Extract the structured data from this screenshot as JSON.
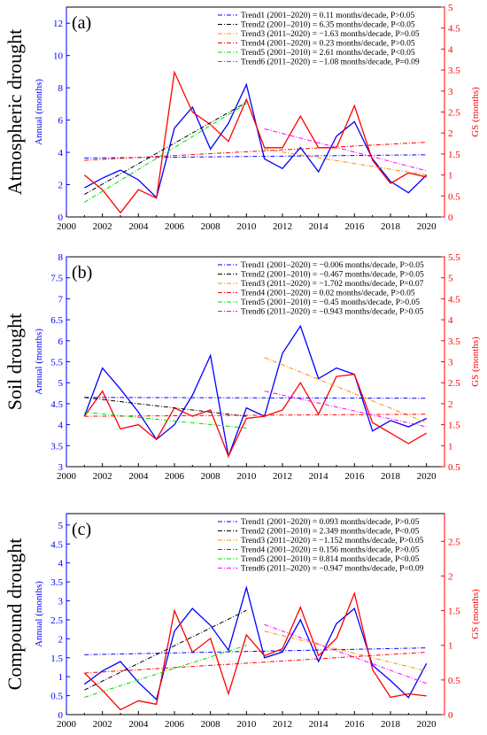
{
  "chart_data": [
    {
      "type": "line",
      "panel_label": "(a)",
      "row_title": "Atmospheric drought",
      "ylabel_left": "Annual (months)",
      "ylabel_right": "GS (months)",
      "xlim": [
        2000,
        2021
      ],
      "x_ticks": [
        2000,
        2002,
        2004,
        2006,
        2008,
        2010,
        2012,
        2014,
        2016,
        2018,
        2020
      ],
      "ylim_left": [
        0,
        13
      ],
      "y_ticks_left": [
        0,
        2,
        4,
        6,
        8,
        10,
        12
      ],
      "ylim_right": [
        0,
        5
      ],
      "y_ticks_right": [
        0,
        0.5,
        1,
        1.5,
        2,
        2.5,
        3,
        3.5,
        4,
        4.5,
        5
      ],
      "x": [
        2001,
        2002,
        2003,
        2004,
        2005,
        2006,
        2007,
        2008,
        2009,
        2010,
        2011,
        2012,
        2013,
        2014,
        2015,
        2016,
        2017,
        2018,
        2019,
        2020
      ],
      "series": [
        {
          "key": "annual",
          "axis": "left",
          "color": "#0000ff",
          "values": [
            1.8,
            2.4,
            2.9,
            2.3,
            1.2,
            5.5,
            6.8,
            4.2,
            5.8,
            8.2,
            3.6,
            3.0,
            4.3,
            2.8,
            5.0,
            5.9,
            3.6,
            2.2,
            1.5,
            2.6
          ]
        },
        {
          "key": "gs",
          "axis": "right",
          "color": "#ff0000",
          "values": [
            1.0,
            0.65,
            0.1,
            0.65,
            0.45,
            3.45,
            2.5,
            2.2,
            1.8,
            2.8,
            1.65,
            1.65,
            2.4,
            1.65,
            1.65,
            2.65,
            1.35,
            0.8,
            1.05,
            0.95
          ]
        }
      ],
      "trends": [
        {
          "name": "Trend1",
          "label": "Trend1 (2001–2020) = 0.11 months/decade, P>0.05",
          "axis": "left",
          "color": "#0000ff",
          "dash": "dashdot",
          "x0": 2001,
          "x1": 2020,
          "y0": 3.65,
          "y1": 3.85
        },
        {
          "name": "Trend2",
          "label": "Trend2 (2001–2010) = 6.35 months/decade, P<0.05",
          "axis": "left",
          "color": "#000000",
          "dash": "dashdot",
          "x0": 2001,
          "x1": 2010,
          "y0": 1.4,
          "y1": 7.1
        },
        {
          "name": "Trend3",
          "label": "Trend3 (2011–2020) = −1.63 months/decade, P>0.05",
          "axis": "left",
          "color": "#ff8c00",
          "dash": "dashdot",
          "x0": 2011,
          "x1": 2020,
          "y0": 4.2,
          "y1": 2.6
        },
        {
          "name": "Trend4",
          "label": "Trend4 (2001–2020) = 0.23 months/decade, P>0.05",
          "axis": "right",
          "color": "#ff0000",
          "dash": "dashdot",
          "x0": 2001,
          "x1": 2020,
          "y0": 1.35,
          "y1": 1.78
        },
        {
          "name": "Trend5",
          "label": "Trend5 (2001–2010) = 2.61 months/decade, P<0.05",
          "axis": "right",
          "color": "#00dd00",
          "dash": "dashdot",
          "x0": 2001,
          "x1": 2010,
          "y0": 0.35,
          "y1": 2.7
        },
        {
          "name": "Trend6",
          "label": "Trend6 (2011–2020) = −1.08 months/decade, P=0.09",
          "axis": "right",
          "color": "#ff00ff",
          "dash": "dashdot",
          "x0": 2011,
          "x1": 2020,
          "y0": 2.1,
          "y1": 1.1
        }
      ]
    },
    {
      "type": "line",
      "panel_label": "(b)",
      "row_title": "Soil drought",
      "ylabel_left": "Annual (months)",
      "ylabel_right": "GS (months)",
      "xlim": [
        2000,
        2021
      ],
      "x_ticks": [
        2000,
        2002,
        2004,
        2006,
        2008,
        2010,
        2012,
        2014,
        2016,
        2018,
        2020
      ],
      "ylim_left": [
        3,
        8
      ],
      "y_ticks_left": [
        3,
        3.5,
        4,
        4.5,
        5,
        5.5,
        6,
        6.5,
        7,
        7.5,
        8
      ],
      "ylim_right": [
        0.5,
        5.5
      ],
      "y_ticks_right": [
        0.5,
        1,
        1.5,
        2,
        2.5,
        3,
        3.5,
        4,
        4.5,
        5,
        5.5
      ],
      "x": [
        2001,
        2002,
        2003,
        2004,
        2005,
        2006,
        2007,
        2008,
        2009,
        2010,
        2011,
        2012,
        2013,
        2014,
        2015,
        2016,
        2017,
        2018,
        2019,
        2020
      ],
      "series": [
        {
          "key": "annual",
          "axis": "left",
          "color": "#0000ff",
          "values": [
            4.2,
            5.35,
            4.85,
            4.3,
            3.65,
            4.0,
            4.7,
            5.65,
            3.25,
            4.4,
            4.2,
            5.7,
            6.35,
            5.1,
            5.35,
            5.2,
            3.85,
            4.1,
            3.95,
            4.15
          ]
        },
        {
          "key": "gs",
          "axis": "right",
          "color": "#ff0000",
          "values": [
            1.7,
            2.3,
            1.4,
            1.5,
            1.15,
            1.9,
            1.7,
            1.85,
            0.75,
            1.65,
            1.7,
            1.85,
            2.5,
            1.75,
            2.65,
            2.7,
            1.55,
            1.3,
            1.05,
            1.3
          ]
        }
      ],
      "trends": [
        {
          "name": "Trend1",
          "label": "Trend1 (2001–2020) = −0.006 months/decade, P>0.05",
          "axis": "left",
          "color": "#0000ff",
          "dash": "dashdot",
          "x0": 2001,
          "x1": 2020,
          "y0": 4.65,
          "y1": 4.63
        },
        {
          "name": "Trend2",
          "label": "Trend2 (2001–2010) = −0.467 months/decade, P>0.05",
          "axis": "left",
          "color": "#000000",
          "dash": "dashdot",
          "x0": 2001,
          "x1": 2010,
          "y0": 4.65,
          "y1": 4.2
        },
        {
          "name": "Trend3",
          "label": "Trend3 (2011–2020) = −1.702 months/decade, P=0.07",
          "axis": "left",
          "color": "#ff8c00",
          "dash": "dashdot",
          "x0": 2011,
          "x1": 2020,
          "y0": 5.6,
          "y1": 4.05
        },
        {
          "name": "Trend4",
          "label": "Trend4 (2001–2020) = 0.02 months/decade, P>0.05",
          "axis": "right",
          "color": "#ff0000",
          "dash": "dashdot",
          "x0": 2001,
          "x1": 2020,
          "y0": 1.7,
          "y1": 1.75
        },
        {
          "name": "Trend5",
          "label": "Trend5 (2001–2010) = −0.45 months/decade, P>0.05",
          "axis": "left",
          "color": "#00dd00",
          "dash": "dashdot",
          "x0": 2001,
          "x1": 2010,
          "y0": 4.3,
          "y1": 3.92
        },
        {
          "name": "Trend6",
          "label": "Trend6 (2011–2020) = −0.943 months/decade, P>0.05",
          "axis": "right",
          "color": "#ff00ff",
          "dash": "dashdot",
          "x0": 2011,
          "x1": 2020,
          "y0": 2.3,
          "y1": 1.45
        }
      ]
    },
    {
      "type": "line",
      "panel_label": "(c)",
      "row_title": "Compound drought",
      "ylabel_left": "Annual (months)",
      "ylabel_right": "GS (months)",
      "xlim": [
        2000,
        2021
      ],
      "x_ticks": [
        2000,
        2002,
        2004,
        2006,
        2008,
        2010,
        2012,
        2014,
        2016,
        2018,
        2020
      ],
      "ylim_left": [
        0,
        5.3
      ],
      "y_ticks_left": [
        0,
        0.5,
        1,
        1.5,
        2,
        2.5,
        3,
        3.5,
        4,
        4.5,
        5
      ],
      "ylim_right": [
        0,
        2.9
      ],
      "y_ticks_right": [
        0,
        0.5,
        1,
        1.5,
        2,
        2.5
      ],
      "x": [
        2001,
        2002,
        2003,
        2004,
        2005,
        2006,
        2007,
        2008,
        2009,
        2010,
        2011,
        2012,
        2013,
        2014,
        2015,
        2016,
        2017,
        2018,
        2019,
        2020
      ],
      "series": [
        {
          "key": "annual",
          "axis": "left",
          "color": "#0000ff",
          "values": [
            0.8,
            1.15,
            1.4,
            0.85,
            0.4,
            2.2,
            2.8,
            2.35,
            1.7,
            3.35,
            1.5,
            1.65,
            2.5,
            1.4,
            2.4,
            2.8,
            1.3,
            0.9,
            0.45,
            1.35
          ]
        },
        {
          "key": "gs",
          "axis": "right",
          "color": "#ff0000",
          "values": [
            0.6,
            0.35,
            0.07,
            0.2,
            0.15,
            1.5,
            0.9,
            1.1,
            0.3,
            1.15,
            0.85,
            0.95,
            1.55,
            0.85,
            1.1,
            1.75,
            0.65,
            0.25,
            0.3,
            0.27
          ]
        }
      ],
      "trends": [
        {
          "name": "Trend1",
          "label": "Trend1 (2001–2020) = 0.093 months/decade, P>0.05",
          "axis": "left",
          "color": "#0000ff",
          "dash": "dashdot",
          "x0": 2001,
          "x1": 2020,
          "y0": 1.58,
          "y1": 1.76
        },
        {
          "name": "Trend2",
          "label": "Trend2 (2001–2010) = 2.349 months/decade, P<0.05",
          "axis": "left",
          "color": "#000000",
          "dash": "dashdot",
          "x0": 2001,
          "x1": 2010,
          "y0": 0.65,
          "y1": 2.75
        },
        {
          "name": "Trend3",
          "label": "Trend3 (2011–2020) = −1.152 months/decade, P>0.05",
          "axis": "left",
          "color": "#ff8c00",
          "dash": "dashdot",
          "x0": 2011,
          "x1": 2020,
          "y0": 2.2,
          "y1": 1.15
        },
        {
          "name": "Trend4",
          "label": "Trend4 (2001–2020) = 0.156 months/decade, P>0.05",
          "axis": "right",
          "color": "#ff0000",
          "dash": "dashdot",
          "x0": 2001,
          "x1": 2020,
          "y0": 0.6,
          "y1": 0.9
        },
        {
          "name": "Trend5",
          "label": "Trend5 (2001–2010) = 0.814 months/decade, P<0.05",
          "axis": "right",
          "color": "#00dd00",
          "dash": "dashdot",
          "x0": 2001,
          "x1": 2010,
          "y0": 0.25,
          "y1": 1.0
        },
        {
          "name": "Trend6",
          "label": "Trend6 (2011–2020) = −0.947 months/decade, P=0.09",
          "axis": "right",
          "color": "#ff00ff",
          "dash": "dashdot",
          "x0": 2011,
          "x1": 2020,
          "y0": 1.3,
          "y1": 0.45
        }
      ]
    }
  ]
}
